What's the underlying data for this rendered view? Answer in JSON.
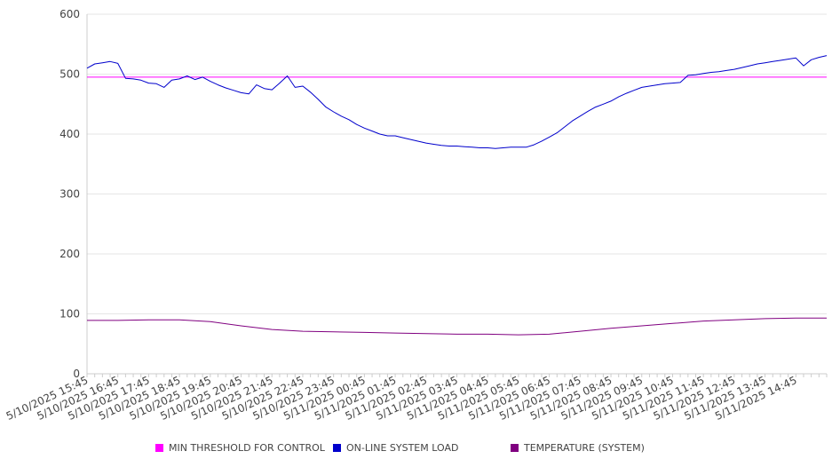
{
  "chart_data": {
    "type": "line",
    "title": "",
    "xlabel": "",
    "ylabel": "",
    "ylim": [
      0,
      600
    ],
    "yticks": [
      0,
      100,
      200,
      300,
      400,
      500,
      600
    ],
    "grid": true,
    "legend_position": "bottom",
    "xtick_labels": [
      "5/10/2025 15:45",
      "5/10/2025 16:45",
      "5/10/2025 17:45",
      "5/10/2025 18:45",
      "5/10/2025 19:45",
      "5/10/2025 20:45",
      "5/10/2025 21:45",
      "5/10/2025 22:45",
      "5/10/2025 23:45",
      "5/11/2025 00:45",
      "5/11/2025 01:45",
      "5/11/2025 02:45",
      "5/11/2025 03:45",
      "5/11/2025 04:45",
      "5/11/2025 05:45",
      "5/11/2025 06:45",
      "5/11/2025 07:45",
      "5/11/2025 08:45",
      "5/11/2025 09:45",
      "5/11/2025 10:45",
      "5/11/2025 11:45",
      "5/11/2025 12:45",
      "5/11/2025 13:45",
      "5/11/2025 14:45"
    ],
    "x_end": "5/11/2025 15:45",
    "series": [
      {
        "name": "MIN THRESHOLD FOR CONTROL",
        "color": "#ff00ff",
        "points": [
          [
            "5/10/2025 15:45",
            495
          ],
          [
            "5/11/2025 15:45",
            495
          ]
        ]
      },
      {
        "name": "ON-LINE SYSTEM LOAD",
        "color": "#0000cc",
        "points": [
          [
            "5/10/2025 15:45",
            510
          ],
          [
            "5/10/2025 16:00",
            517
          ],
          [
            "5/10/2025 16:15",
            519
          ],
          [
            "5/10/2025 16:30",
            521
          ],
          [
            "5/10/2025 16:45",
            518
          ],
          [
            "5/10/2025 17:00",
            493
          ],
          [
            "5/10/2025 17:15",
            492
          ],
          [
            "5/10/2025 17:30",
            490
          ],
          [
            "5/10/2025 17:45",
            485
          ],
          [
            "5/10/2025 18:00",
            484
          ],
          [
            "5/10/2025 18:15",
            478
          ],
          [
            "5/10/2025 18:30",
            490
          ],
          [
            "5/10/2025 18:45",
            492
          ],
          [
            "5/10/2025 19:00",
            497
          ],
          [
            "5/10/2025 19:15",
            491
          ],
          [
            "5/10/2025 19:30",
            495
          ],
          [
            "5/10/2025 19:45",
            488
          ],
          [
            "5/10/2025 20:00",
            482
          ],
          [
            "5/10/2025 20:15",
            477
          ],
          [
            "5/10/2025 20:30",
            473
          ],
          [
            "5/10/2025 20:45",
            469
          ],
          [
            "5/10/2025 21:00",
            467
          ],
          [
            "5/10/2025 21:15",
            482
          ],
          [
            "5/10/2025 21:30",
            476
          ],
          [
            "5/10/2025 21:45",
            474
          ],
          [
            "5/10/2025 22:00",
            485
          ],
          [
            "5/10/2025 22:15",
            497
          ],
          [
            "5/10/2025 22:30",
            478
          ],
          [
            "5/10/2025 22:45",
            480
          ],
          [
            "5/10/2025 23:00",
            470
          ],
          [
            "5/10/2025 23:15",
            458
          ],
          [
            "5/10/2025 23:30",
            445
          ],
          [
            "5/10/2025 23:45",
            437
          ],
          [
            "5/11/2025 00:00",
            430
          ],
          [
            "5/11/2025 00:15",
            424
          ],
          [
            "5/11/2025 00:30",
            416
          ],
          [
            "5/11/2025 00:45",
            410
          ],
          [
            "5/11/2025 01:00",
            405
          ],
          [
            "5/11/2025 01:15",
            400
          ],
          [
            "5/11/2025 01:30",
            397
          ],
          [
            "5/11/2025 01:45",
            397
          ],
          [
            "5/11/2025 02:00",
            394
          ],
          [
            "5/11/2025 02:15",
            391
          ],
          [
            "5/11/2025 02:30",
            388
          ],
          [
            "5/11/2025 02:45",
            385
          ],
          [
            "5/11/2025 03:00",
            383
          ],
          [
            "5/11/2025 03:15",
            381
          ],
          [
            "5/11/2025 03:30",
            380
          ],
          [
            "5/11/2025 03:45",
            380
          ],
          [
            "5/11/2025 04:00",
            379
          ],
          [
            "5/11/2025 04:15",
            378
          ],
          [
            "5/11/2025 04:30",
            377
          ],
          [
            "5/11/2025 04:45",
            377
          ],
          [
            "5/11/2025 05:00",
            376
          ],
          [
            "5/11/2025 05:15",
            377
          ],
          [
            "5/11/2025 05:30",
            378
          ],
          [
            "5/11/2025 05:45",
            378
          ],
          [
            "5/11/2025 06:00",
            378
          ],
          [
            "5/11/2025 06:15",
            382
          ],
          [
            "5/11/2025 06:30",
            388
          ],
          [
            "5/11/2025 06:45",
            395
          ],
          [
            "5/11/2025 07:00",
            402
          ],
          [
            "5/11/2025 07:15",
            412
          ],
          [
            "5/11/2025 07:30",
            422
          ],
          [
            "5/11/2025 07:45",
            430
          ],
          [
            "5/11/2025 08:00",
            438
          ],
          [
            "5/11/2025 08:15",
            445
          ],
          [
            "5/11/2025 08:30",
            450
          ],
          [
            "5/11/2025 08:45",
            455
          ],
          [
            "5/11/2025 09:00",
            462
          ],
          [
            "5/11/2025 09:15",
            468
          ],
          [
            "5/11/2025 09:30",
            473
          ],
          [
            "5/11/2025 09:45",
            478
          ],
          [
            "5/11/2025 10:00",
            480
          ],
          [
            "5/11/2025 10:15",
            482
          ],
          [
            "5/11/2025 10:30",
            484
          ],
          [
            "5/11/2025 10:45",
            485
          ],
          [
            "5/11/2025 11:00",
            486
          ],
          [
            "5/11/2025 11:15",
            498
          ],
          [
            "5/11/2025 11:30",
            499
          ],
          [
            "5/11/2025 11:45",
            501
          ],
          [
            "5/11/2025 12:00",
            503
          ],
          [
            "5/11/2025 12:15",
            504
          ],
          [
            "5/11/2025 12:30",
            506
          ],
          [
            "5/11/2025 12:45",
            508
          ],
          [
            "5/11/2025 13:00",
            511
          ],
          [
            "5/11/2025 13:15",
            514
          ],
          [
            "5/11/2025 13:30",
            517
          ],
          [
            "5/11/2025 13:45",
            519
          ],
          [
            "5/11/2025 14:00",
            521
          ],
          [
            "5/11/2025 14:15",
            523
          ],
          [
            "5/11/2025 14:30",
            525
          ],
          [
            "5/11/2025 14:45",
            527
          ],
          [
            "5/11/2025 15:00",
            514
          ],
          [
            "5/11/2025 15:15",
            524
          ],
          [
            "5/11/2025 15:30",
            528
          ],
          [
            "5/11/2025 15:45",
            531
          ]
        ]
      },
      {
        "name": "TEMPERATURE (SYSTEM)",
        "color": "#800080",
        "points": [
          [
            "5/10/2025 15:45",
            89
          ],
          [
            "5/10/2025 16:45",
            89
          ],
          [
            "5/10/2025 17:45",
            90
          ],
          [
            "5/10/2025 18:45",
            90
          ],
          [
            "5/10/2025 19:45",
            87
          ],
          [
            "5/10/2025 20:45",
            80
          ],
          [
            "5/10/2025 21:45",
            74
          ],
          [
            "5/10/2025 22:45",
            71
          ],
          [
            "5/10/2025 23:45",
            70
          ],
          [
            "5/11/2025 00:45",
            69
          ],
          [
            "5/11/2025 01:45",
            68
          ],
          [
            "5/11/2025 02:45",
            67
          ],
          [
            "5/11/2025 03:45",
            66
          ],
          [
            "5/11/2025 04:45",
            66
          ],
          [
            "5/11/2025 05:45",
            65
          ],
          [
            "5/11/2025 06:45",
            66
          ],
          [
            "5/11/2025 07:45",
            71
          ],
          [
            "5/11/2025 08:45",
            76
          ],
          [
            "5/11/2025 09:45",
            80
          ],
          [
            "5/11/2025 10:45",
            84
          ],
          [
            "5/11/2025 11:45",
            88
          ],
          [
            "5/11/2025 12:45",
            90
          ],
          [
            "5/11/2025 13:45",
            92
          ],
          [
            "5/11/2025 14:45",
            93
          ],
          [
            "5/11/2025 15:45",
            93
          ]
        ]
      }
    ],
    "legend": [
      {
        "label": "MIN THRESHOLD FOR CONTROL",
        "color": "#ff00ff"
      },
      {
        "label": "ON-LINE SYSTEM LOAD",
        "color": "#0000cc"
      },
      {
        "label": "TEMPERATURE (SYSTEM)",
        "color": "#800080"
      }
    ]
  }
}
